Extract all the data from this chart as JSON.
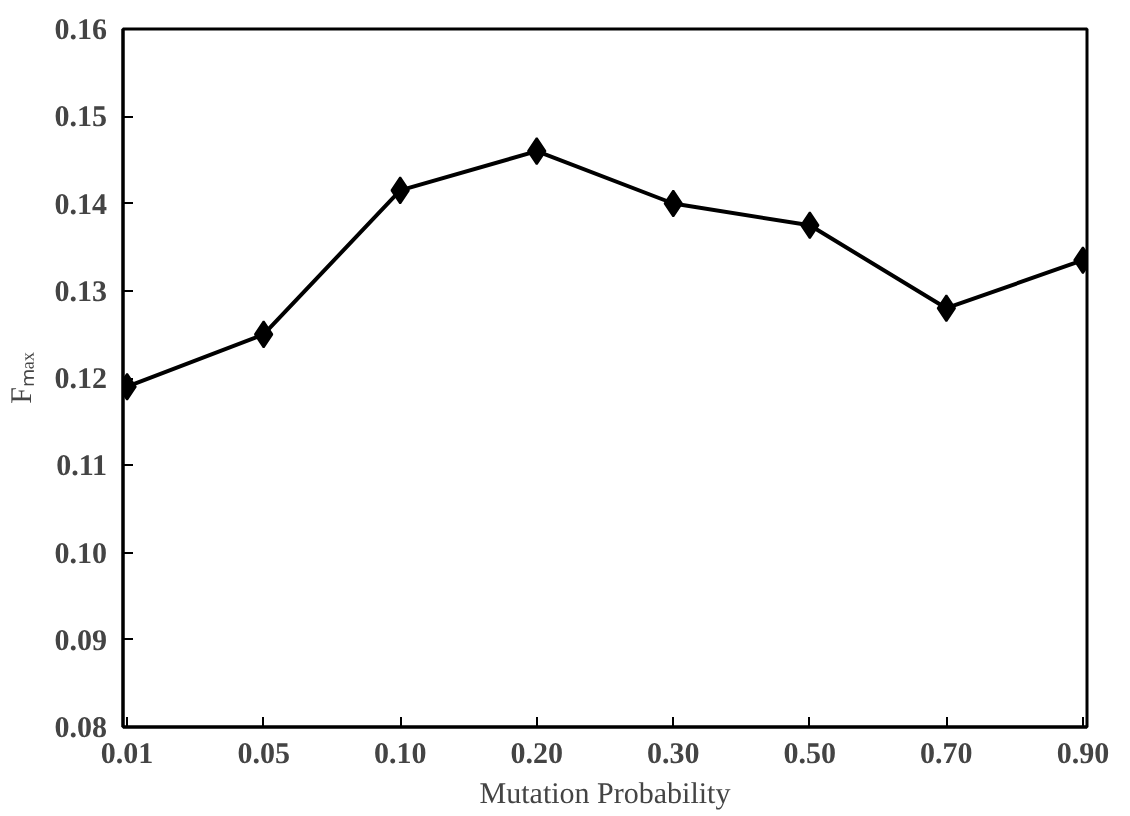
{
  "chart_data": {
    "type": "line",
    "xlabel": "Mutation Probability",
    "ylabel": "Fₘₐₓ",
    "categories": [
      "0.01",
      "0.05",
      "0.10",
      "0.20",
      "0.30",
      "0.50",
      "0.70",
      "0.90"
    ],
    "series": [
      {
        "color": "#000000",
        "values": [
          0.119,
          0.125,
          0.1415,
          0.146,
          0.14,
          0.1375,
          0.128,
          0.1335
        ]
      }
    ],
    "ylim": [
      0.08,
      0.16
    ],
    "yticks": [
      {
        "value": 0.08,
        "label": "0.08"
      },
      {
        "value": 0.09,
        "label": "0.09"
      },
      {
        "value": 0.1,
        "label": "0.10"
      },
      {
        "value": 0.11,
        "label": "0.11"
      },
      {
        "value": 0.12,
        "label": "0.12"
      },
      {
        "value": 0.13,
        "label": "0.13"
      },
      {
        "value": 0.14,
        "label": "0.14"
      },
      {
        "value": 0.15,
        "label": "0.15"
      },
      {
        "value": 0.16,
        "label": "0.16"
      }
    ],
    "marker": "diamond",
    "line_style": "solid",
    "grid": false
  }
}
